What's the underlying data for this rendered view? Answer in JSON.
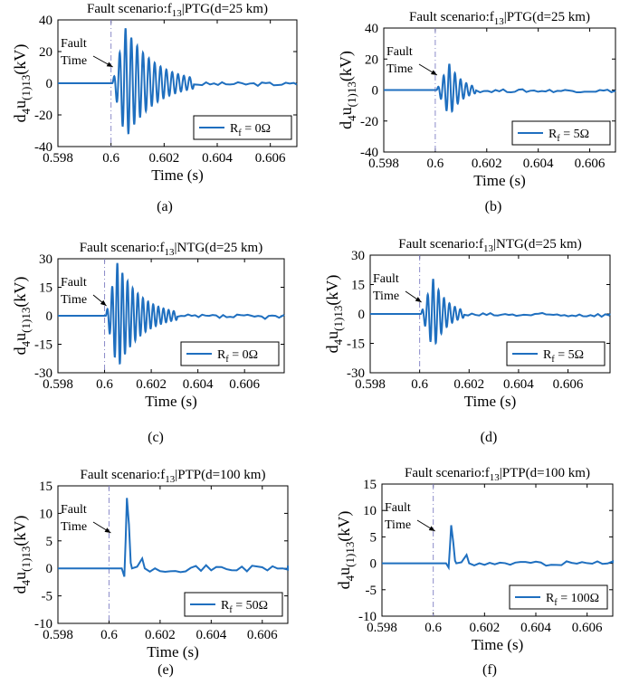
{
  "chart_data": [
    {
      "id": "a",
      "type": "line",
      "title_prefix": "Fault scenario:f",
      "title_sub": "13",
      "title_suffix": "|PTG(d=25 km)",
      "xlabel": "Time (s)",
      "ylabel_parts": [
        "d",
        "4",
        "u",
        "(1)13",
        "(kV)"
      ],
      "xlim": [
        0.598,
        0.607
      ],
      "ylim": [
        -40,
        40
      ],
      "xticks": [
        0.598,
        0.6,
        0.602,
        0.604,
        0.606
      ],
      "xtick_labels": [
        "0.598",
        "0.6",
        "0.602",
        "0.604",
        "0.606"
      ],
      "yticks": [
        -40,
        -20,
        0,
        20,
        40
      ],
      "ytick_labels": [
        "-40",
        "-20",
        "0",
        "20",
        "40"
      ],
      "fault_time": 0.6,
      "annotation_line1": "Fault",
      "annotation_line2": "Time",
      "legend_prefix": "R",
      "legend_sub": "f",
      "legend_value": " = 0Ω",
      "caption": "(a)",
      "series": [
        {
          "name": "Rf = 0Ω",
          "peak": 35,
          "damping": 2.0,
          "osc_count": 14,
          "tail": 1.2,
          "tail_extent": 1.0
        }
      ]
    },
    {
      "id": "b",
      "type": "line",
      "title_prefix": "Fault scenario:f",
      "title_sub": "13",
      "title_suffix": "|PTG(d=25 km)",
      "xlabel": "Time (s)",
      "ylabel_parts": [
        "d",
        "4",
        "u",
        "(1)13",
        "(kV)"
      ],
      "xlim": [
        0.598,
        0.607
      ],
      "ylim": [
        -40,
        40
      ],
      "xticks": [
        0.598,
        0.6,
        0.602,
        0.604,
        0.606
      ],
      "xtick_labels": [
        "0.598",
        "0.6",
        "0.602",
        "0.604",
        "0.606"
      ],
      "yticks": [
        -40,
        -20,
        0,
        20,
        40
      ],
      "ytick_labels": [
        "-40",
        "-20",
        "0",
        "20",
        "40"
      ],
      "fault_time": 0.6,
      "annotation_line1": "Fault",
      "annotation_line2": "Time",
      "legend_prefix": "R",
      "legend_sub": "f",
      "legend_value": " = 5Ω",
      "caption": "(b)",
      "series": [
        {
          "name": "Rf = 5Ω",
          "peak": 17,
          "damping": 4.5,
          "osc_count": 7,
          "tail": 1.0,
          "tail_extent": 1.0
        }
      ]
    },
    {
      "id": "c",
      "type": "line",
      "title_prefix": "Fault scenario:f",
      "title_sub": "13",
      "title_suffix": "|NTG(d=25 km)",
      "xlabel": "Time (s)",
      "ylabel_parts": [
        "d",
        "4",
        "u",
        "(1)13",
        "(kV)"
      ],
      "xlim": [
        0.598,
        0.6077
      ],
      "ylim": [
        -30,
        30
      ],
      "xticks": [
        0.598,
        0.6,
        0.602,
        0.604,
        0.606
      ],
      "xtick_labels": [
        "0.598",
        "0.6",
        "0.602",
        "0.604",
        "0.606"
      ],
      "yticks": [
        -30,
        -15,
        0,
        15,
        30
      ],
      "ytick_labels": [
        "-30",
        "-15",
        "0",
        "15",
        "30"
      ],
      "fault_time": 0.6,
      "annotation_line1": "Fault",
      "annotation_line2": "Time",
      "legend_prefix": "R",
      "legend_sub": "f",
      "legend_value": " = 0Ω",
      "caption": "(c)",
      "series": [
        {
          "name": "Rf = 0Ω",
          "peak": 28,
          "damping": 2.2,
          "osc_count": 14,
          "tail": 1.2,
          "tail_extent": 1.0
        }
      ]
    },
    {
      "id": "d",
      "type": "line",
      "title_prefix": "Fault scenario:f",
      "title_sub": "13",
      "title_suffix": "|NTG(d=25 km)",
      "xlabel": "Time (s)",
      "ylabel_parts": [
        "d",
        "4",
        "u",
        "(1)13",
        "(kV)"
      ],
      "xlim": [
        0.598,
        0.6077
      ],
      "ylim": [
        -30,
        30
      ],
      "xticks": [
        0.598,
        0.6,
        0.602,
        0.604,
        0.606
      ],
      "xtick_labels": [
        "0.598",
        "0.6",
        "0.602",
        "0.604",
        "0.606"
      ],
      "yticks": [
        -30,
        -15,
        0,
        15,
        30
      ],
      "ytick_labels": [
        "-30",
        "-15",
        "0",
        "15",
        "30"
      ],
      "fault_time": 0.6,
      "annotation_line1": "Fault",
      "annotation_line2": "Time",
      "legend_prefix": "R",
      "legend_sub": "f",
      "legend_value": " = 5Ω",
      "caption": "(d)",
      "series": [
        {
          "name": "Rf = 5Ω",
          "peak": 18,
          "damping": 4.0,
          "osc_count": 8,
          "tail": 1.0,
          "tail_extent": 1.0
        }
      ]
    },
    {
      "id": "e",
      "type": "line",
      "title_prefix": "Fault scenario:f",
      "title_sub": "13",
      "title_suffix": "|PTP(d=100 km)",
      "xlabel": "Time (s)",
      "ylabel_parts": [
        "d",
        "4",
        "u",
        "(1)13",
        "(kV)"
      ],
      "xlim": [
        0.598,
        0.607
      ],
      "ylim": [
        -10,
        15
      ],
      "xticks": [
        0.598,
        0.6,
        0.602,
        0.604,
        0.606
      ],
      "xtick_labels": [
        "0.598",
        "0.6",
        "0.602",
        "0.604",
        "0.606"
      ],
      "yticks": [
        -10,
        -5,
        0,
        5,
        10,
        15
      ],
      "ytick_labels": [
        "-10",
        "-5",
        "0",
        "5",
        "10",
        "15"
      ],
      "fault_time": 0.6,
      "annotation_line1": "Fault",
      "annotation_line2": "Time",
      "legend_prefix": "R",
      "legend_sub": "f",
      "legend_value": " = 50Ω",
      "caption": "(e)",
      "series": [
        {
          "name": "Rf = 50Ω",
          "spike": [
            [
              0.6,
              0
            ],
            [
              0.6005,
              0
            ],
            [
              0.6006,
              -1.5
            ],
            [
              0.60065,
              5
            ],
            [
              0.6007,
              12.8
            ],
            [
              0.60078,
              8
            ],
            [
              0.60085,
              1
            ],
            [
              0.6009,
              0
            ],
            [
              0.6011,
              0.3
            ],
            [
              0.6013,
              1.8
            ],
            [
              0.6014,
              0
            ],
            [
              0.6016,
              -0.6
            ],
            [
              0.6018,
              0
            ],
            [
              0.602,
              -0.5
            ]
          ],
          "tail": 0.6
        }
      ]
    },
    {
      "id": "f",
      "type": "line",
      "title_prefix": "Fault scenario:f",
      "title_sub": "13",
      "title_suffix": "|PTP(d=100 km)",
      "xlabel": "Time (s)",
      "ylabel_parts": [
        "d",
        "4",
        "u",
        "(1)13",
        "(kV)"
      ],
      "xlim": [
        0.598,
        0.607
      ],
      "ylim": [
        -10,
        15
      ],
      "xticks": [
        0.598,
        0.6,
        0.602,
        0.604,
        0.606
      ],
      "xtick_labels": [
        "0.598",
        "0.6",
        "0.602",
        "0.604",
        "0.606"
      ],
      "yticks": [
        -10,
        -5,
        0,
        5,
        10,
        15
      ],
      "ytick_labels": [
        "-10",
        "-5",
        "0",
        "5",
        "10",
        "15"
      ],
      "fault_time": 0.6,
      "annotation_line1": "Fault",
      "annotation_line2": "Time",
      "legend_prefix": "R",
      "legend_sub": "f",
      "legend_value": " = 100Ω",
      "caption": "(f)",
      "series": [
        {
          "name": "Rf = 100Ω",
          "spike": [
            [
              0.6,
              0
            ],
            [
              0.6005,
              0
            ],
            [
              0.6006,
              -0.8
            ],
            [
              0.60065,
              3
            ],
            [
              0.6007,
              7.2
            ],
            [
              0.60078,
              4
            ],
            [
              0.60085,
              0.5
            ],
            [
              0.6009,
              0
            ],
            [
              0.6011,
              0.2
            ],
            [
              0.6013,
              1.6
            ],
            [
              0.6014,
              0
            ],
            [
              0.6016,
              -0.4
            ],
            [
              0.6018,
              0
            ],
            [
              0.602,
              -0.3
            ]
          ],
          "tail": 0.4
        }
      ]
    }
  ],
  "colors": {
    "line": "#1f6fbf",
    "fault_line": "#8a8ac8",
    "axis": "#000000"
  }
}
